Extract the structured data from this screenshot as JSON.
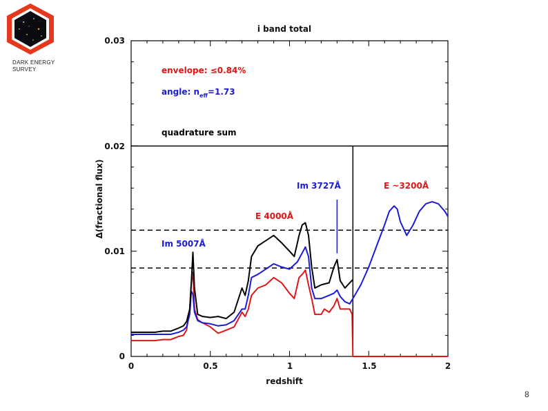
{
  "logo": {
    "line1": "DARK ENERGY",
    "line2": "SURVEY"
  },
  "page_number": "8",
  "colors": {
    "black": "#000000",
    "red": "#e01515",
    "blue": "#1a1ad8"
  },
  "chart_data": {
    "type": "line",
    "title": "i band total",
    "xlabel": "redshift",
    "ylabel": "Δ(fractional flux)",
    "xlim": [
      0,
      2
    ],
    "ylim": [
      0,
      0.03
    ],
    "x_ticks": [
      "0",
      "0.5",
      "1",
      "1.5",
      "2"
    ],
    "y_ticks": [
      "0",
      "0.01",
      "0.02",
      "0.03"
    ],
    "legend_text": [
      {
        "text": "envelope: ≤0.84%",
        "color": "red"
      },
      {
        "text": "angle: n",
        "sub": "eff",
        "tail": "=1.73",
        "color": "blue"
      },
      {
        "text": "quadrature sum",
        "color": "black"
      }
    ],
    "annotations": [
      {
        "text": "Im 5007Å",
        "color": "blue"
      },
      {
        "text": "E 4000Å",
        "color": "red"
      },
      {
        "text": "Im 3727Å",
        "color": "blue"
      },
      {
        "text": "E ~3200Å",
        "color": "red"
      }
    ],
    "reference_lines": {
      "horizontal_solid": 0.02,
      "horizontal_dashed": [
        0.012,
        0.0084
      ],
      "vertical_solid": 1.4,
      "marker_3727": {
        "x": 1.3,
        "y_range": [
          0.0098,
          0.0149
        ]
      }
    },
    "series": [
      {
        "name": "quadrature sum",
        "color": "black",
        "x": [
          0,
          0.05,
          0.1,
          0.15,
          0.2,
          0.25,
          0.3,
          0.33,
          0.35,
          0.37,
          0.38,
          0.39,
          0.4,
          0.42,
          0.45,
          0.5,
          0.55,
          0.6,
          0.65,
          0.7,
          0.72,
          0.74,
          0.76,
          0.8,
          0.85,
          0.9,
          0.95,
          1.0,
          1.03,
          1.06,
          1.08,
          1.1,
          1.12,
          1.14,
          1.16,
          1.2,
          1.25,
          1.28,
          1.3,
          1.32,
          1.35,
          1.38,
          1.4
        ],
        "y": [
          0.0023,
          0.0023,
          0.0023,
          0.0023,
          0.0024,
          0.0024,
          0.0027,
          0.0029,
          0.0033,
          0.0045,
          0.007,
          0.0099,
          0.0065,
          0.004,
          0.0038,
          0.0037,
          0.0038,
          0.0036,
          0.0042,
          0.0065,
          0.0058,
          0.0072,
          0.0095,
          0.0105,
          0.011,
          0.0115,
          0.0108,
          0.01,
          0.0095,
          0.0115,
          0.0125,
          0.0127,
          0.0115,
          0.0085,
          0.0065,
          0.0068,
          0.007,
          0.0085,
          0.0092,
          0.0072,
          0.0065,
          0.007,
          0.0073
        ]
      },
      {
        "name": "angle",
        "color": "blue",
        "x": [
          0,
          0.05,
          0.1,
          0.15,
          0.2,
          0.25,
          0.3,
          0.33,
          0.35,
          0.37,
          0.38,
          0.39,
          0.4,
          0.42,
          0.45,
          0.5,
          0.55,
          0.6,
          0.65,
          0.7,
          0.72,
          0.74,
          0.76,
          0.8,
          0.85,
          0.9,
          0.95,
          1.0,
          1.05,
          1.1,
          1.12,
          1.14,
          1.16,
          1.2,
          1.25,
          1.28,
          1.3,
          1.32,
          1.35,
          1.38,
          1.4,
          1.45,
          1.5,
          1.55,
          1.6,
          1.63,
          1.66,
          1.68,
          1.7,
          1.74,
          1.78,
          1.82,
          1.86,
          1.9,
          1.94,
          1.98,
          2.0
        ],
        "y": [
          0.0021,
          0.0021,
          0.0021,
          0.0021,
          0.0021,
          0.0021,
          0.0023,
          0.0025,
          0.0028,
          0.004,
          0.0062,
          0.0059,
          0.0042,
          0.0034,
          0.0032,
          0.0031,
          0.0029,
          0.003,
          0.0034,
          0.0045,
          0.0045,
          0.0058,
          0.0075,
          0.0078,
          0.0083,
          0.0088,
          0.0085,
          0.0083,
          0.009,
          0.0104,
          0.0095,
          0.0065,
          0.0055,
          0.0055,
          0.0058,
          0.006,
          0.0063,
          0.0057,
          0.0052,
          0.005,
          0.0055,
          0.0068,
          0.0085,
          0.0105,
          0.0125,
          0.0138,
          0.0143,
          0.014,
          0.0128,
          0.0115,
          0.0125,
          0.0138,
          0.0145,
          0.0147,
          0.0145,
          0.0138,
          0.0133
        ]
      },
      {
        "name": "envelope",
        "color": "red",
        "x": [
          0,
          0.05,
          0.1,
          0.15,
          0.2,
          0.25,
          0.3,
          0.33,
          0.35,
          0.37,
          0.38,
          0.39,
          0.4,
          0.42,
          0.45,
          0.5,
          0.55,
          0.6,
          0.65,
          0.7,
          0.72,
          0.74,
          0.76,
          0.8,
          0.85,
          0.9,
          0.95,
          1.0,
          1.03,
          1.06,
          1.08,
          1.1,
          1.12,
          1.14,
          1.16,
          1.2,
          1.22,
          1.25,
          1.28,
          1.3,
          1.32,
          1.35,
          1.38,
          1.395,
          1.4,
          1.41,
          1.5,
          1.6,
          1.7,
          1.8,
          1.9,
          2.0
        ],
        "y": [
          0.0015,
          0.0015,
          0.0015,
          0.0015,
          0.0016,
          0.0016,
          0.0019,
          0.002,
          0.0025,
          0.0045,
          0.007,
          0.008,
          0.0045,
          0.0035,
          0.0032,
          0.0028,
          0.0022,
          0.0025,
          0.0028,
          0.0042,
          0.0038,
          0.0045,
          0.0058,
          0.0065,
          0.0068,
          0.0075,
          0.007,
          0.006,
          0.0055,
          0.0075,
          0.0078,
          0.0082,
          0.0068,
          0.0055,
          0.004,
          0.004,
          0.0045,
          0.0042,
          0.0048,
          0.0055,
          0.0045,
          0.0045,
          0.0045,
          0.004,
          0,
          0,
          0,
          0,
          0,
          0,
          0,
          0
        ]
      }
    ]
  }
}
